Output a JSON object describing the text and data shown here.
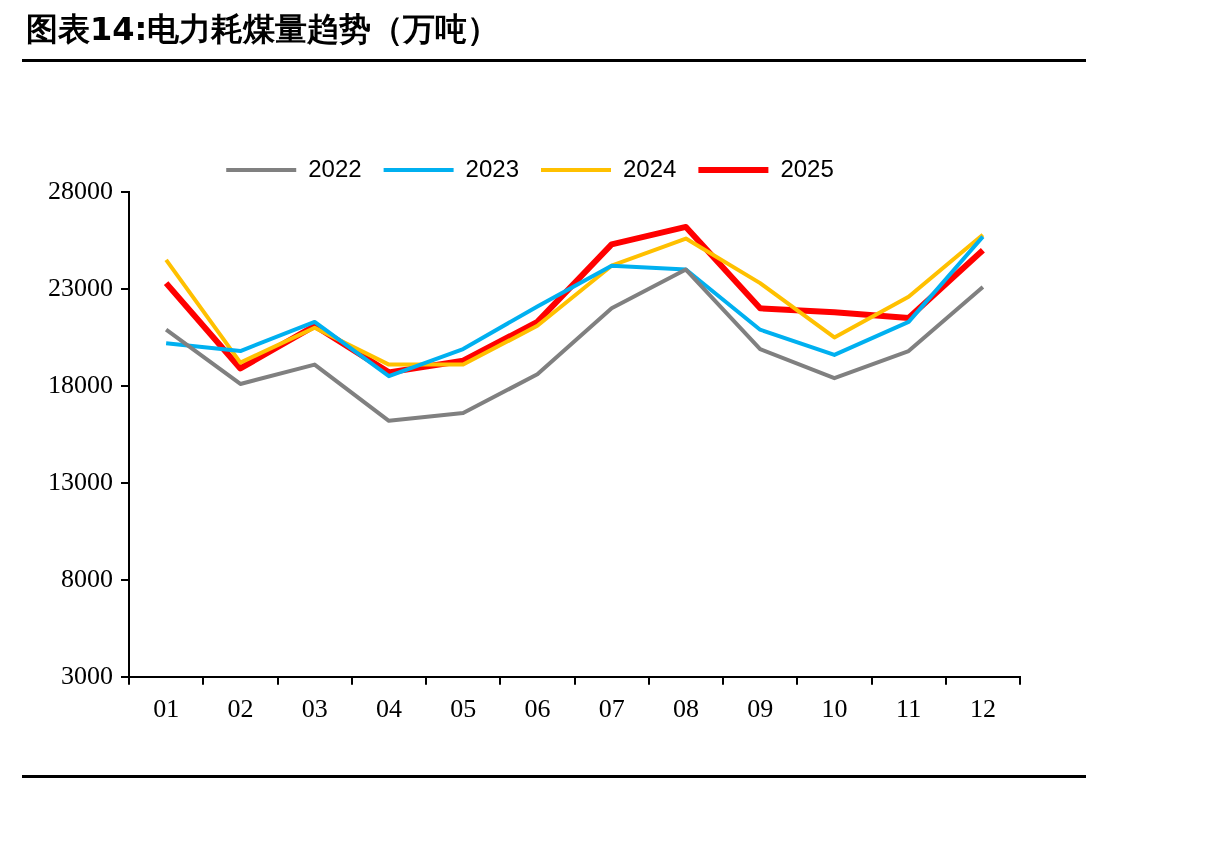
{
  "chart_data": {
    "type": "line",
    "title": "图表14:电力耗煤量趋势（万吨）",
    "categories": [
      "01",
      "02",
      "03",
      "04",
      "05",
      "06",
      "07",
      "08",
      "09",
      "10",
      "11",
      "12"
    ],
    "series": [
      {
        "name": "2022",
        "color": "#808080",
        "values": [
          20900,
          18100,
          19100,
          16200,
          16600,
          18600,
          22000,
          24000,
          19900,
          18400,
          19800,
          23100
        ]
      },
      {
        "name": "2023",
        "color": "#00b0f0",
        "values": [
          20200,
          19800,
          21300,
          18500,
          19900,
          22100,
          24200,
          24000,
          20900,
          19600,
          21300,
          25700
        ]
      },
      {
        "name": "2024",
        "color": "#ffc000",
        "values": [
          24500,
          19200,
          21000,
          19100,
          19100,
          21100,
          24200,
          25600,
          23300,
          20500,
          22600,
          25800
        ]
      },
      {
        "name": "2025",
        "color": "#ff0000",
        "values": [
          23300,
          18900,
          21100,
          18700,
          19300,
          21300,
          25300,
          26200,
          22000,
          21800,
          21500,
          25000
        ]
      }
    ],
    "ylim": [
      3000,
      28000
    ],
    "yticks": [
      3000,
      8000,
      13000,
      18000,
      23000,
      28000
    ],
    "grid": false,
    "legend": "top",
    "marker": "none",
    "line_style": "solid"
  }
}
